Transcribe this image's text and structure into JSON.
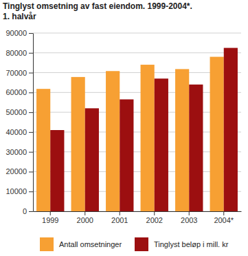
{
  "chart_data": {
    "type": "bar",
    "title": "Tinglyst omsetning av fast eiendom. 1999-2004*.",
    "subtitle": "1. halvår",
    "categories": [
      "1999",
      "2000",
      "2001",
      "2002",
      "2003",
      "2004*"
    ],
    "series": [
      {
        "name": "Antall omsetninger",
        "color": "#f7a033",
        "values": [
          61800,
          67800,
          70800,
          74000,
          71800,
          78000
        ]
      },
      {
        "name": "Tinglyst beløp i mill. kr",
        "color": "#9c0f10",
        "values": [
          41000,
          52000,
          56500,
          67000,
          64000,
          82500
        ]
      }
    ],
    "ylim": [
      0,
      90000
    ],
    "yticks": [
      0,
      10000,
      20000,
      30000,
      40000,
      50000,
      60000,
      70000,
      80000,
      90000
    ],
    "grid": true,
    "legend": "bottom"
  }
}
